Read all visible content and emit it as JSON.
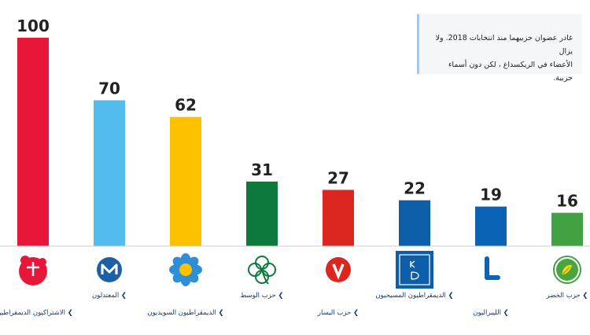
{
  "note": {
    "line1": "غادر عضوان حزبيهما منذ انتخابات 2018. ولا يزال",
    "line2": "الأعضاء في الريكسداغ ، لكن دون أسماء حزبية."
  },
  "chart_data": {
    "type": "bar",
    "categories": [
      "الاشتراكيون الديمقراطيون",
      "المعتدلون",
      "الديمقراطيون السويديون",
      "حزب الوسط",
      "حزب اليسار",
      "الديمقراطيون المسيحيون",
      "الليبراليون",
      "حزب الخضر"
    ],
    "values": [
      100,
      70,
      62,
      31,
      27,
      22,
      19,
      16
    ],
    "colors": [
      "#e8173a",
      "#52bdec",
      "#fcc200",
      "#0d7a3d",
      "#dc2720",
      "#0d5ea8",
      "#0a63b5",
      "#42a142"
    ],
    "icons": [
      "social-democrats-logo-icon",
      "moderates-logo-icon",
      "sweden-democrats-logo-icon",
      "centre-party-logo-icon",
      "left-party-logo-icon",
      "christian-democrats-logo-icon",
      "liberals-logo-icon",
      "green-party-logo-icon"
    ],
    "ylim": [
      0,
      100
    ],
    "legend": "none",
    "grid": false
  }
}
